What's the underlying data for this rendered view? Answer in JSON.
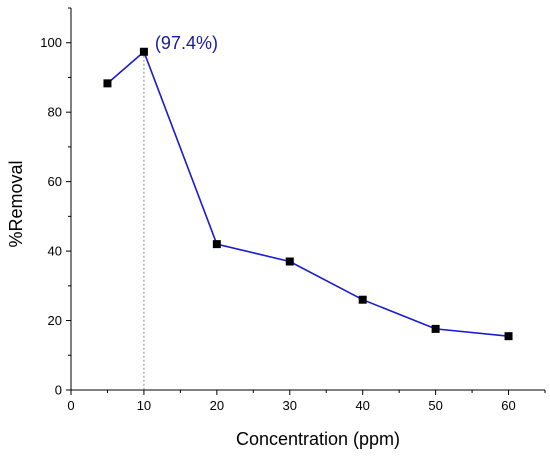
{
  "chart_data": {
    "type": "line",
    "xlabel": "Concentration (ppm)",
    "ylabel": "%Removal",
    "xlim": [
      0,
      65
    ],
    "ylim": [
      0,
      110
    ],
    "x_ticks": [
      "0",
      "10",
      "20",
      "30",
      "40",
      "50",
      "60"
    ],
    "y_ticks": [
      "0",
      "20",
      "40",
      "60",
      "80",
      "100"
    ],
    "x_tick_values": [
      0,
      10,
      20,
      30,
      40,
      50,
      60
    ],
    "y_tick_values": [
      0,
      20,
      40,
      60,
      80,
      100
    ],
    "series": [
      {
        "x": [
          5,
          10,
          20,
          30,
          40,
          50,
          60
        ],
        "values": [
          88.3,
          97.4,
          42.0,
          37.0,
          26.0,
          17.6,
          15.5
        ],
        "line_color": "#1a1ad6",
        "marker_color": "#000000",
        "marker": "square"
      }
    ],
    "annotation": {
      "text": "(97.4%)",
      "x": 10,
      "y": 97.4,
      "color": "#1a1aa0"
    },
    "reference_line": {
      "x": 10,
      "style": "dotted",
      "color": "#888888"
    },
    "grid": false,
    "legend": "none"
  }
}
